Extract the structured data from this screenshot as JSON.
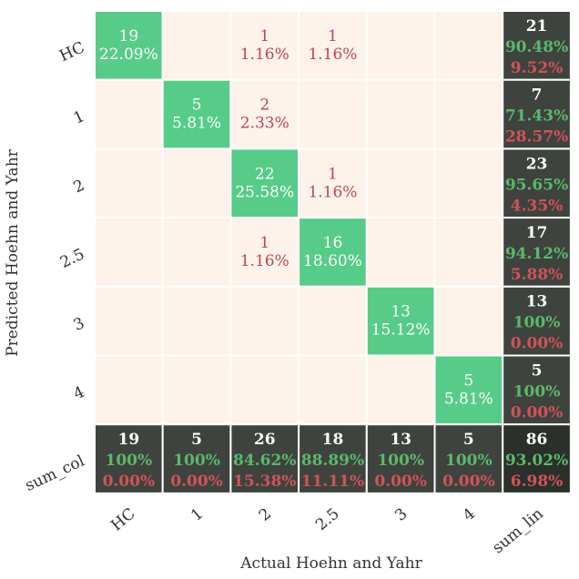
{
  "chart_data": {
    "type": "heatmap",
    "subtype": "confusion-matrix",
    "xlabel": "Actual Hoehn and Yahr",
    "ylabel": "Predicted Hoehn and Yahr",
    "x_ticks": [
      "HC",
      "1",
      "2",
      "2.5",
      "3",
      "4",
      "sum_lin"
    ],
    "y_ticks": [
      "HC",
      "1",
      "2",
      "2.5",
      "3",
      "4",
      "sum_col"
    ],
    "classes": [
      "HC",
      "1",
      "2",
      "2.5",
      "3",
      "4"
    ],
    "cells": [
      [
        {
          "count": "19",
          "pct": "22.09%"
        },
        {
          "count": "",
          "pct": ""
        },
        {
          "count": "1",
          "pct": "1.16%"
        },
        {
          "count": "1",
          "pct": "1.16%"
        },
        {
          "count": "",
          "pct": ""
        },
        {
          "count": "",
          "pct": ""
        }
      ],
      [
        {
          "count": "",
          "pct": ""
        },
        {
          "count": "5",
          "pct": "5.81%"
        },
        {
          "count": "2",
          "pct": "2.33%"
        },
        {
          "count": "",
          "pct": ""
        },
        {
          "count": "",
          "pct": ""
        },
        {
          "count": "",
          "pct": ""
        }
      ],
      [
        {
          "count": "",
          "pct": ""
        },
        {
          "count": "",
          "pct": ""
        },
        {
          "count": "22",
          "pct": "25.58%"
        },
        {
          "count": "1",
          "pct": "1.16%"
        },
        {
          "count": "",
          "pct": ""
        },
        {
          "count": "",
          "pct": ""
        }
      ],
      [
        {
          "count": "",
          "pct": ""
        },
        {
          "count": "",
          "pct": ""
        },
        {
          "count": "1",
          "pct": "1.16%"
        },
        {
          "count": "16",
          "pct": "18.60%"
        },
        {
          "count": "",
          "pct": ""
        },
        {
          "count": "",
          "pct": ""
        }
      ],
      [
        {
          "count": "",
          "pct": ""
        },
        {
          "count": "",
          "pct": ""
        },
        {
          "count": "",
          "pct": ""
        },
        {
          "count": "",
          "pct": ""
        },
        {
          "count": "13",
          "pct": "15.12%"
        },
        {
          "count": "",
          "pct": ""
        }
      ],
      [
        {
          "count": "",
          "pct": ""
        },
        {
          "count": "",
          "pct": ""
        },
        {
          "count": "",
          "pct": ""
        },
        {
          "count": "",
          "pct": ""
        },
        {
          "count": "",
          "pct": ""
        },
        {
          "count": "5",
          "pct": "5.81%"
        }
      ]
    ],
    "row_totals": [
      {
        "total": "21",
        "correct": "90.48%",
        "wrong": "9.52%"
      },
      {
        "total": "7",
        "correct": "71.43%",
        "wrong": "28.57%"
      },
      {
        "total": "23",
        "correct": "95.65%",
        "wrong": "4.35%"
      },
      {
        "total": "17",
        "correct": "94.12%",
        "wrong": "5.88%"
      },
      {
        "total": "13",
        "correct": "100%",
        "wrong": "0.00%"
      },
      {
        "total": "5",
        "correct": "100%",
        "wrong": "0.00%"
      }
    ],
    "col_totals": [
      {
        "total": "19",
        "correct": "100%",
        "wrong": "0.00%"
      },
      {
        "total": "5",
        "correct": "100%",
        "wrong": "0.00%"
      },
      {
        "total": "26",
        "correct": "84.62%",
        "wrong": "15.38%"
      },
      {
        "total": "18",
        "correct": "88.89%",
        "wrong": "11.11%"
      },
      {
        "total": "13",
        "correct": "100%",
        "wrong": "0.00%"
      },
      {
        "total": "5",
        "correct": "100%",
        "wrong": "0.00%"
      }
    ],
    "grand_total": {
      "total": "86",
      "correct": "93.02%",
      "wrong": "6.98%"
    },
    "colors": {
      "diagonal": "#57cc88",
      "off_diagonal": "#fdf3ea",
      "summary": "#3e433e",
      "grand_total": "#2b302b",
      "off_diag_text": "#c0474f",
      "correct_text": "#5bb86c",
      "wrong_text": "#d0535a",
      "diag_text": "#ffffff",
      "total_text": "#ffffff",
      "axis_text": "#333333",
      "grid": "#ffffff"
    }
  }
}
